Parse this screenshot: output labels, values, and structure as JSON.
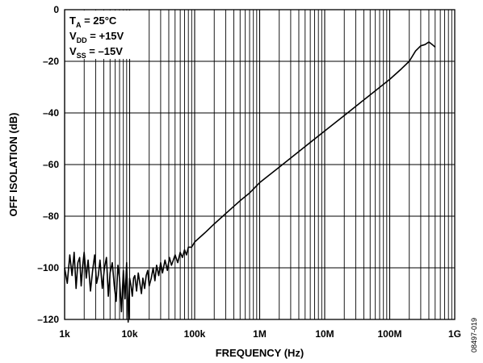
{
  "chart_data": {
    "type": "line",
    "xlabel": "FREQUENCY (Hz)",
    "ylabel": "OFF ISOLATION (dB)",
    "x_scale": "log",
    "xlim": [
      1000,
      1000000000
    ],
    "ylim": [
      -120,
      0
    ],
    "grid": true,
    "x_ticks": [
      {
        "value": 1000,
        "label": "1k"
      },
      {
        "value": 10000,
        "label": "10k"
      },
      {
        "value": 100000,
        "label": "100k"
      },
      {
        "value": 1000000,
        "label": "1M"
      },
      {
        "value": 10000000,
        "label": "10M"
      },
      {
        "value": 100000000,
        "label": "100M"
      },
      {
        "value": 1000000000,
        "label": "1G"
      }
    ],
    "y_ticks": [
      {
        "value": 0,
        "label": "0"
      },
      {
        "value": -20,
        "label": "–20"
      },
      {
        "value": -40,
        "label": "–40"
      },
      {
        "value": -60,
        "label": "–60"
      },
      {
        "value": -80,
        "label": "–80"
      },
      {
        "value": -100,
        "label": "–100"
      },
      {
        "value": -120,
        "label": "–120"
      }
    ],
    "conditions": [
      {
        "main": "T",
        "sub": "A",
        "rest": " = 25°C"
      },
      {
        "main": "V",
        "sub": "DD",
        "rest": " = +15V"
      },
      {
        "main": "V",
        "sub": "SS",
        "rest": " = –15V"
      }
    ],
    "series": [
      {
        "color": "#000000",
        "x": [
          1000,
          1100,
          1200,
          1300,
          1400,
          1500,
          1600,
          1700,
          1800,
          1900,
          2000,
          2150,
          2300,
          2500,
          2700,
          2900,
          3100,
          3300,
          3500,
          3800,
          4100,
          4400,
          4700,
          5000,
          5400,
          5800,
          6200,
          6600,
          7000,
          7500,
          8000,
          8500,
          9000,
          9500,
          10000,
          10500,
          11000,
          11500,
          12000,
          12800,
          13600,
          14400,
          15200,
          16000,
          17000,
          18000,
          19000,
          20000,
          21500,
          23000,
          24500,
          26000,
          28000,
          30000,
          32000,
          35000,
          38000,
          41000,
          44000,
          47000,
          50000,
          55000,
          60000,
          65000,
          70000,
          75000,
          80000,
          90000,
          100000,
          150000,
          200000,
          300000,
          500000,
          700000,
          1000000,
          2000000,
          5000000,
          10000000,
          20000000,
          50000000,
          100000000,
          150000000,
          200000000,
          250000000,
          300000000,
          350000000,
          400000000,
          450000000,
          500000000
        ],
        "y": [
          -100,
          -106,
          -95,
          -103,
          -94,
          -108,
          -98,
          -96,
          -107,
          -99,
          -94,
          -104,
          -97,
          -109,
          -101,
          -95,
          -106,
          -103,
          -97,
          -108,
          -100,
          -96,
          -111,
          -102,
          -98,
          -107,
          -113,
          -99,
          -104,
          -117,
          -101,
          -112,
          -98,
          -121,
          -104,
          -107,
          -111,
          -104,
          -103,
          -109,
          -102,
          -106,
          -110,
          -104,
          -108,
          -103,
          -101,
          -107,
          -104,
          -100,
          -105,
          -99,
          -103,
          -98,
          -102,
          -97,
          -101,
          -96,
          -99,
          -97,
          -95,
          -98,
          -94,
          -96,
          -93,
          -95,
          -92,
          -92,
          -90,
          -86,
          -83,
          -79,
          -74,
          -71,
          -67,
          -61,
          -53,
          -47,
          -41,
          -33,
          -27,
          -23,
          -20,
          -16,
          -14,
          -13.5,
          -12.5,
          -13.5,
          -14.5
        ]
      }
    ]
  },
  "figure_id": "08497-019"
}
